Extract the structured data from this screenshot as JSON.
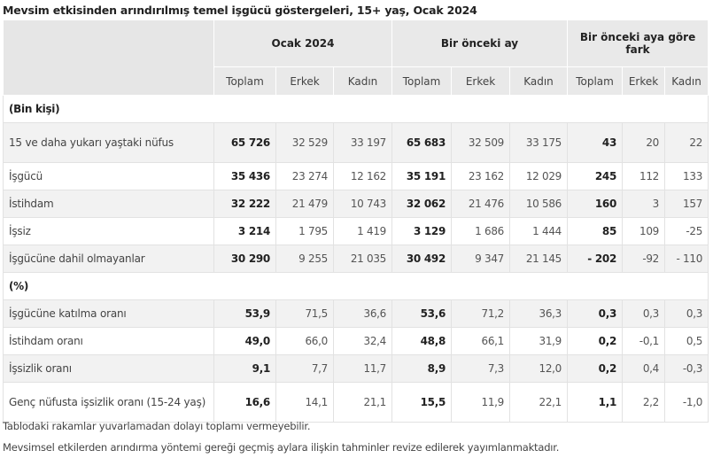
{
  "title": "Mevsim etkisinden arındırılmış temel işgücü göstergeleri, 15+ yaş, Ocak 2024",
  "groups": [
    "Ocak 2024",
    "Bir önceki ay",
    "Bir önceki aya göre fark"
  ],
  "subheaders": [
    "Toplam",
    "Erkek",
    "Kadın",
    "Toplam",
    "Erkek",
    "Kadın",
    "Toplam",
    "Erkek",
    "Kadın"
  ],
  "sections": [
    {
      "label": "(Bin kişi)",
      "rows": [
        {
          "label": "15 ve daha yukarı yaştaki nüfus",
          "values": [
            "65 726",
            "32 529",
            "33 197",
            "65 683",
            "32 509",
            "33 175",
            "43",
            "20",
            "22"
          ]
        },
        {
          "label": "İşgücü",
          "values": [
            "35 436",
            "23 274",
            "12 162",
            "35 191",
            "23 162",
            "12 029",
            "245",
            "112",
            "133"
          ]
        },
        {
          "label": "İstihdam",
          "values": [
            "32 222",
            "21 479",
            "10 743",
            "32 062",
            "21 476",
            "10 586",
            "160",
            "3",
            "157"
          ]
        },
        {
          "label": "İşsiz",
          "values": [
            "3 214",
            "1 795",
            "1 419",
            "3 129",
            "1 686",
            "1 444",
            "85",
            "109",
            "-25"
          ]
        },
        {
          "label": "İşgücüne dahil olmayanlar",
          "values": [
            "30 290",
            "9 255",
            "21 035",
            "30 492",
            "9 347",
            "21 145",
            "- 202",
            "-92",
            "- 110"
          ]
        }
      ]
    },
    {
      "label": "(%)",
      "rows": [
        {
          "label": "İşgücüne katılma oranı",
          "values": [
            "53,9",
            "71,5",
            "36,6",
            "53,6",
            "71,2",
            "36,3",
            "0,3",
            "0,3",
            "0,3"
          ]
        },
        {
          "label": "İstihdam oranı",
          "values": [
            "49,0",
            "66,0",
            "32,4",
            "48,8",
            "66,1",
            "31,9",
            "0,2",
            "-0,1",
            "0,5"
          ]
        },
        {
          "label": "İşsizlik oranı",
          "values": [
            "9,1",
            "7,7",
            "11,7",
            "8,9",
            "7,3",
            "12,0",
            "0,2",
            "0,4",
            "-0,3"
          ]
        },
        {
          "label": "Genç nüfusta işsizlik oranı (15-24 yaş)",
          "values": [
            "16,6",
            "14,1",
            "21,1",
            "15,5",
            "11,9",
            "22,1",
            "1,1",
            "2,2",
            "-1,0"
          ]
        }
      ]
    }
  ],
  "notes": [
    "Tablodaki rakamlar yuvarlamadan dolayı toplamı vermeyebilir.",
    "Mevsimsel etkilerden arındırma yöntemi gereği geçmiş aylara ilişkin tahminler revize edilerek yayımlanmaktadır."
  ]
}
